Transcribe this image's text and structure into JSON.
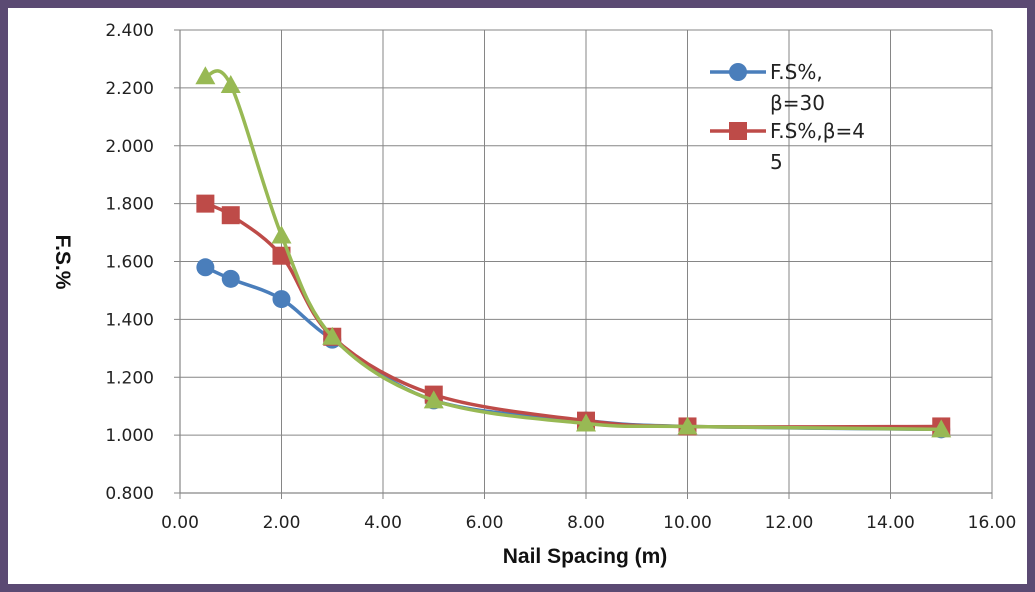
{
  "chart_data": {
    "type": "line",
    "title": "",
    "xlabel": "Nail Spacing (m)",
    "ylabel": "F.S.%",
    "xlim": [
      0,
      16
    ],
    "ylim": [
      0.8,
      2.4
    ],
    "grid": true,
    "legend_position": "top-right",
    "x_ticks": [
      "0.00",
      "2.00",
      "4.00",
      "6.00",
      "8.00",
      "10.00",
      "12.00",
      "14.00",
      "16.00"
    ],
    "y_ticks": [
      "0.800",
      "1.000",
      "1.200",
      "1.400",
      "1.600",
      "1.800",
      "2.000",
      "2.200",
      "2.400"
    ],
    "x": [
      0.5,
      1,
      2,
      3,
      5,
      8,
      10,
      15
    ],
    "series": [
      {
        "name": "F.S%, β=30",
        "legend_lines": [
          "F.S%,",
          "β=30"
        ],
        "color": "#4a7ebb",
        "marker": "circle",
        "values": [
          1.58,
          1.54,
          1.47,
          1.33,
          1.12,
          1.05,
          1.03,
          1.02
        ]
      },
      {
        "name": "F.S%,β=45",
        "legend_lines": [
          "F.S%,β=4",
          "5"
        ],
        "color": "#be4b48",
        "marker": "square",
        "values": [
          1.8,
          1.76,
          1.62,
          1.34,
          1.14,
          1.05,
          1.03,
          1.03
        ]
      },
      {
        "name": "",
        "legend_lines": [],
        "color": "#98b954",
        "marker": "triangle",
        "values": [
          2.24,
          2.21,
          1.69,
          1.34,
          1.12,
          1.04,
          1.03,
          1.02
        ]
      }
    ]
  }
}
